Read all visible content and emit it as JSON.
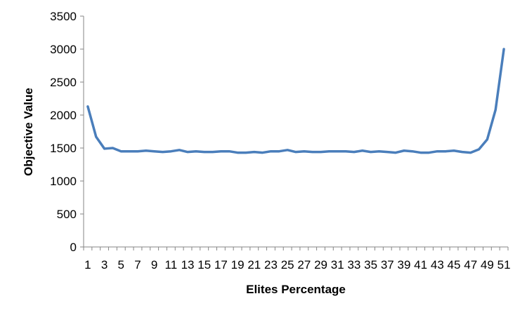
{
  "chart_data": {
    "type": "line",
    "title": "",
    "xlabel": "Elites Percentage",
    "ylabel": "Objective Value",
    "ylim": [
      0,
      3500
    ],
    "yticks": [
      0,
      500,
      1000,
      1500,
      2000,
      2500,
      3000,
      3500
    ],
    "x": [
      1,
      2,
      3,
      4,
      5,
      6,
      7,
      8,
      9,
      10,
      11,
      12,
      13,
      14,
      15,
      16,
      17,
      18,
      19,
      20,
      21,
      22,
      23,
      24,
      25,
      26,
      27,
      28,
      29,
      30,
      31,
      32,
      33,
      34,
      35,
      36,
      37,
      38,
      39,
      40,
      41,
      42,
      43,
      44,
      45,
      46,
      47,
      48,
      49,
      50,
      51
    ],
    "xtick_labels": [
      "1",
      "3",
      "5",
      "7",
      "9",
      "11",
      "13",
      "15",
      "17",
      "19",
      "21",
      "23",
      "25",
      "27",
      "29",
      "31",
      "33",
      "35",
      "37",
      "39",
      "41",
      "43",
      "45",
      "47",
      "49",
      "51"
    ],
    "grid": false,
    "legend": "none",
    "series": [
      {
        "color": "#4a7ebb",
        "values": [
          2130,
          1670,
          1490,
          1500,
          1450,
          1450,
          1450,
          1460,
          1450,
          1440,
          1450,
          1470,
          1440,
          1450,
          1440,
          1440,
          1450,
          1450,
          1430,
          1430,
          1440,
          1430,
          1450,
          1450,
          1470,
          1440,
          1450,
          1440,
          1440,
          1450,
          1450,
          1450,
          1440,
          1460,
          1440,
          1450,
          1440,
          1430,
          1460,
          1450,
          1430,
          1430,
          1450,
          1450,
          1460,
          1440,
          1430,
          1480,
          1630,
          2080,
          3000
        ]
      }
    ]
  }
}
